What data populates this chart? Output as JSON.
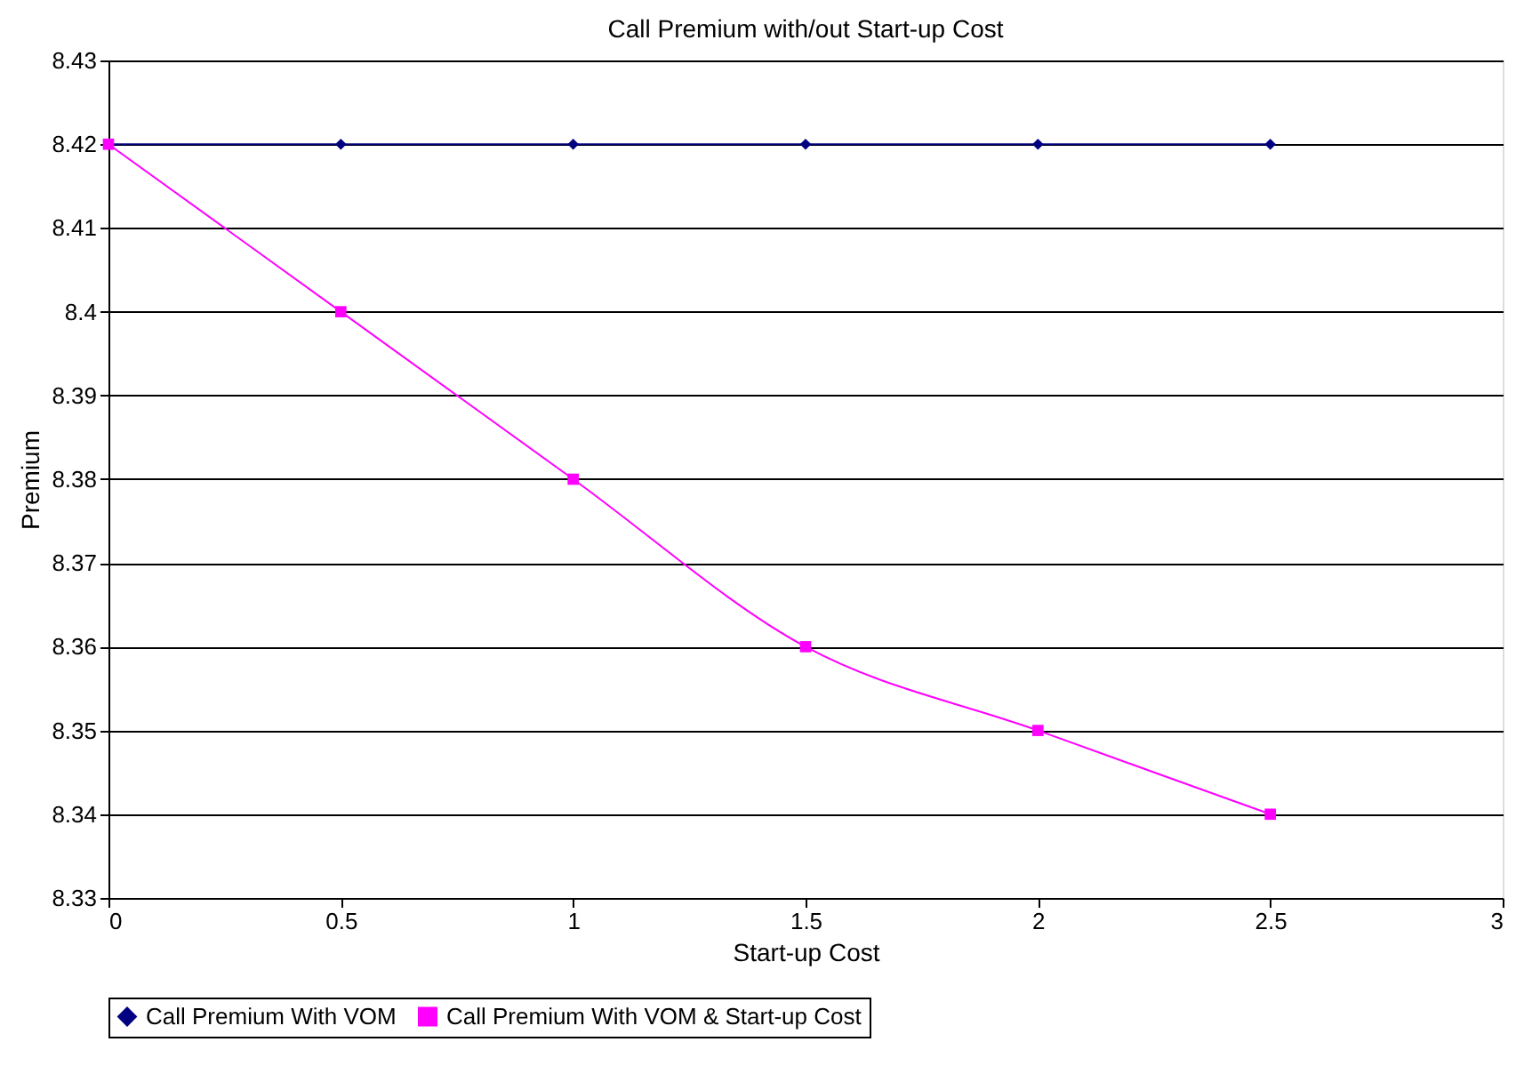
{
  "chart_data": {
    "type": "line",
    "title": "Call Premium with/out Start-up Cost",
    "xlabel": "Start-up Cost",
    "ylabel": "Premium",
    "x": [
      0,
      0.5,
      1,
      1.5,
      2,
      2.5
    ],
    "series": [
      {
        "name": "Call Premium With VOM",
        "color": "#000080",
        "marker": "diamond",
        "values": [
          8.42,
          8.42,
          8.42,
          8.42,
          8.42,
          8.42
        ]
      },
      {
        "name": "Call Premium With VOM & Start-up Cost",
        "color": "#ff00ff",
        "marker": "square",
        "values": [
          8.42,
          8.4,
          8.38,
          8.36,
          8.35,
          8.34
        ]
      }
    ],
    "xlim": [
      0,
      3
    ],
    "xticks": [
      0,
      0.5,
      1,
      1.5,
      2,
      2.5,
      3
    ],
    "ylim": [
      8.33,
      8.43
    ],
    "yticks": [
      8.33,
      8.34,
      8.35,
      8.36,
      8.37,
      8.38,
      8.39,
      8.4,
      8.41,
      8.42,
      8.43
    ],
    "grid": "y",
    "legend": "bottom",
    "line_style": "solid"
  }
}
